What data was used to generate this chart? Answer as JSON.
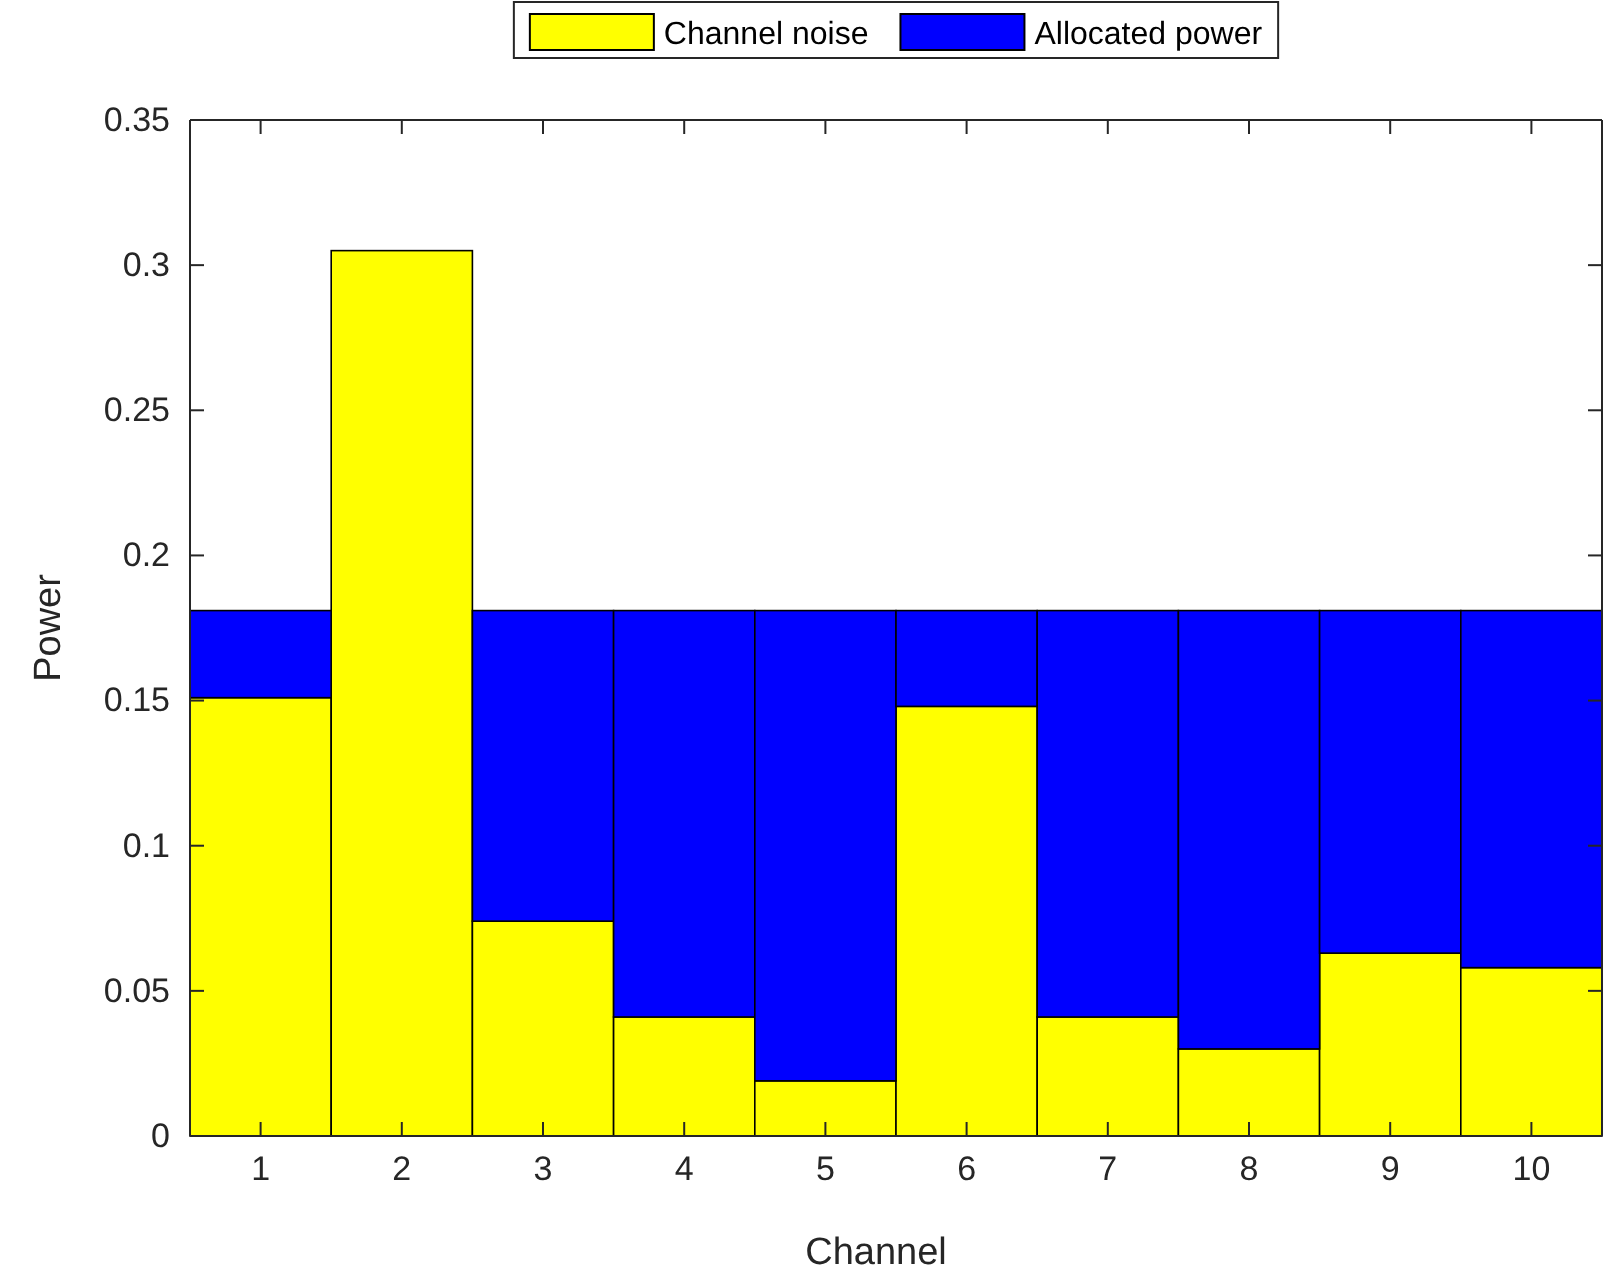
{
  "chart_data": {
    "type": "bar",
    "xlabel": "Channel",
    "ylabel": "Power",
    "categories": [
      "1",
      "2",
      "3",
      "4",
      "5",
      "6",
      "7",
      "8",
      "9",
      "10"
    ],
    "stacked": true,
    "legend": "top",
    "grid": false,
    "ylim": [
      0,
      0.35
    ],
    "yticks": [
      0,
      0.05,
      0.1,
      0.15,
      0.2,
      0.25,
      0.3,
      0.35
    ],
    "series": [
      {
        "name": "Channel noise",
        "color": "#ffff00",
        "values": [
          0.151,
          0.305,
          0.074,
          0.041,
          0.019,
          0.148,
          0.041,
          0.03,
          0.063,
          0.058
        ]
      },
      {
        "name": "Allocated power",
        "color": "#0000ff",
        "values": [
          0.03,
          0,
          0.107,
          0.14,
          0.162,
          0.033,
          0.14,
          0.151,
          0.118,
          0.123
        ]
      }
    ]
  }
}
